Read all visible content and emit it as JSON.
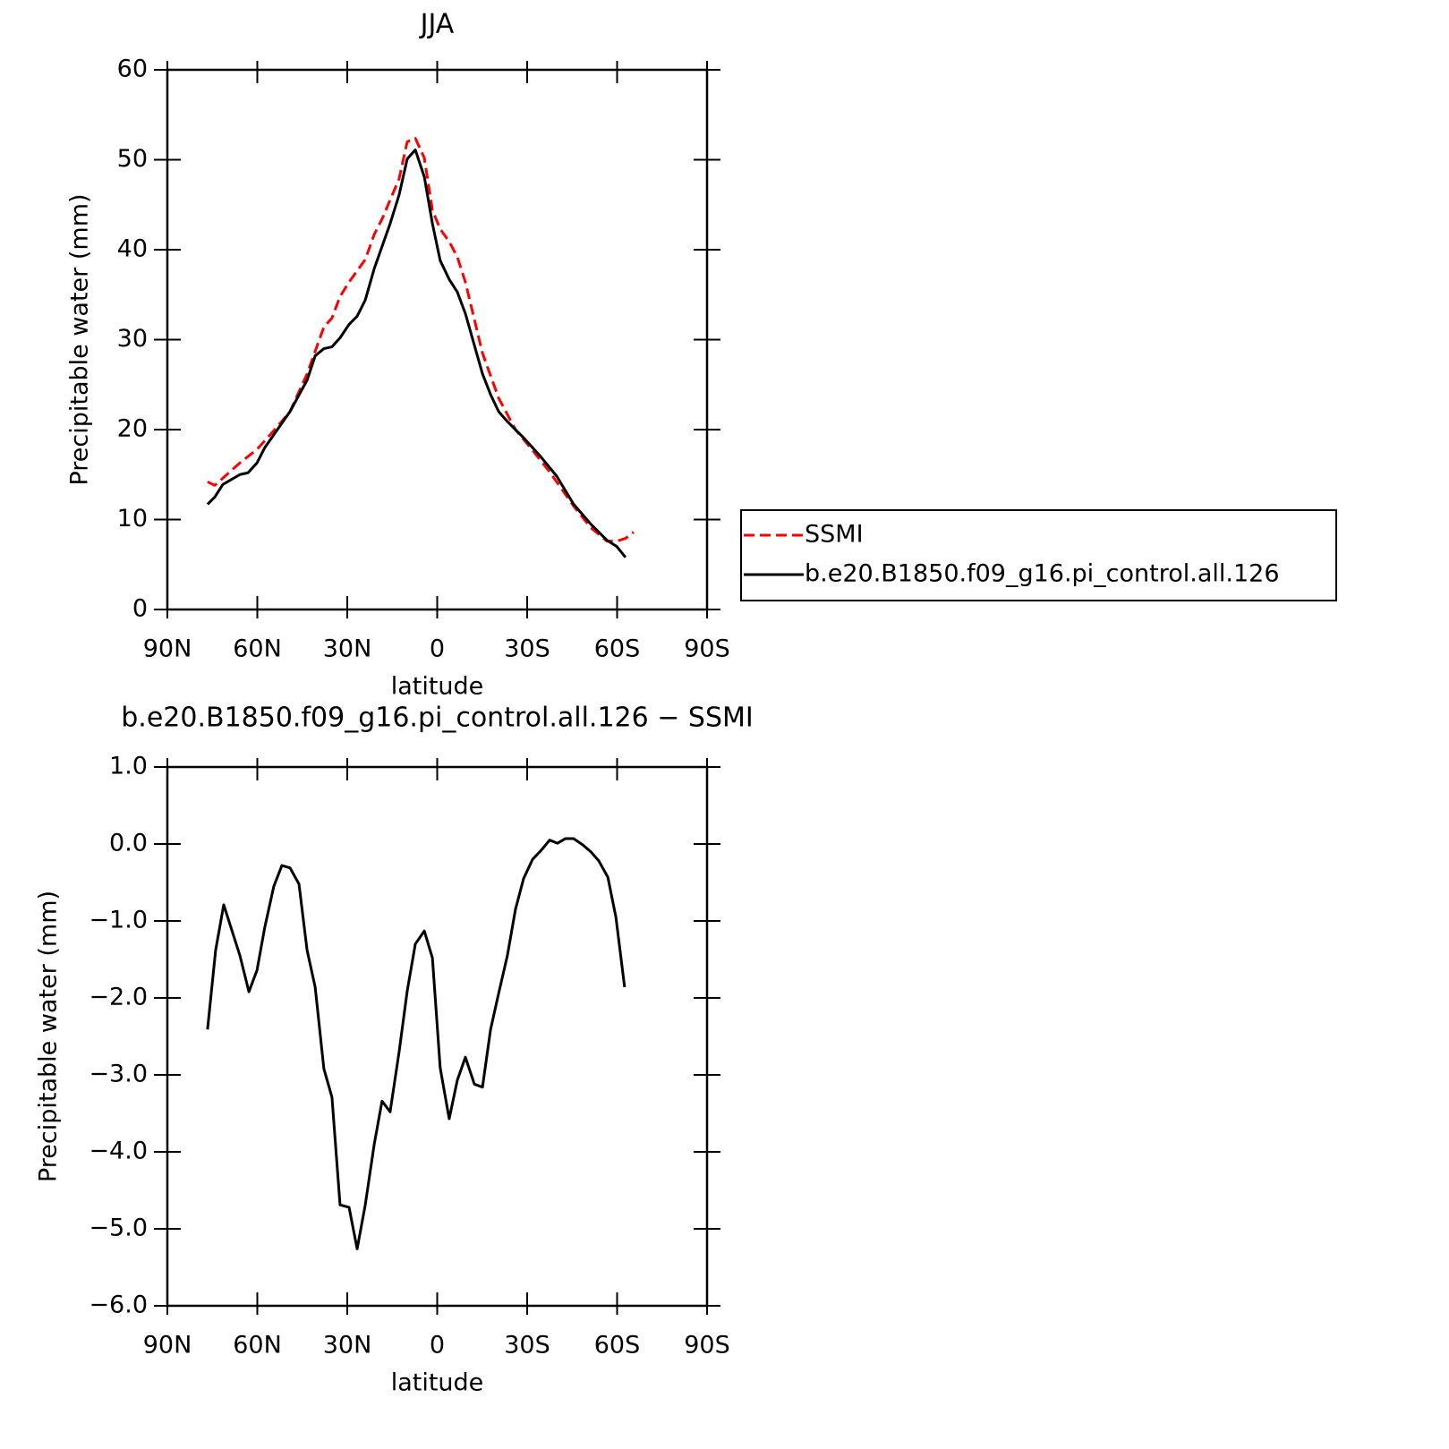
{
  "chart_data": [
    {
      "type": "line",
      "title": "JJA",
      "xlabel": "latitude",
      "ylabel": "Precipitable water (mm)",
      "xlim": [
        90,
        -90
      ],
      "xticks": [
        {
          "value": 90,
          "label": "90N"
        },
        {
          "value": 60,
          "label": "60N"
        },
        {
          "value": 30,
          "label": "30N"
        },
        0,
        {
          "value": -30,
          "label": "30S"
        },
        {
          "value": -60,
          "label": "60S"
        },
        {
          "value": -90,
          "label": "90S"
        }
      ],
      "ylim": [
        0,
        60
      ],
      "yticks": [
        0,
        10,
        20,
        30,
        40,
        50,
        60
      ],
      "legend": "right",
      "series": [
        {
          "name": "SSMI",
          "color": "#ff0000",
          "dash": "dashed",
          "x": [
            76.6,
            74.2,
            65.8,
            60.1,
            54.7,
            49.1,
            43.4,
            37.8,
            35.1,
            32.4,
            29.4,
            24.0,
            21.0,
            18.4,
            12.7,
            10.0,
            7.3,
            4.3,
            1.6,
            -1.0,
            -4.0,
            -6.7,
            -9.4,
            -15.1,
            -20.5,
            -26.1,
            -31.8,
            -37.5,
            -45.5,
            -51.2,
            -56.6,
            -59.9,
            -62.8,
            -65.5
          ],
          "values": [
            14.2,
            13.8,
            16.3,
            17.8,
            19.8,
            22.0,
            26.2,
            31.4,
            32.4,
            34.8,
            36.4,
            38.9,
            41.7,
            43.4,
            47.9,
            52.0,
            52.4,
            50.2,
            44.4,
            42.3,
            40.9,
            39.2,
            36.4,
            28.5,
            23.5,
            20.0,
            17.7,
            15.3,
            11.5,
            9.1,
            7.6,
            7.6,
            7.9,
            8.6
          ]
        },
        {
          "name": "b.e20.B1850.f09_g16.pi_control.all.126",
          "color": "#000000",
          "dash": "solid",
          "x": [
            76.6,
            74.2,
            71.5,
            65.8,
            63.1,
            60.1,
            57.5,
            49.1,
            43.4,
            40.7,
            37.8,
            35.1,
            32.4,
            29.4,
            26.7,
            24.0,
            21.0,
            15.7,
            12.7,
            10.0,
            7.3,
            4.3,
            1.6,
            -1.0,
            -4.0,
            -6.7,
            -9.4,
            -15.1,
            -17.8,
            -20.5,
            -23.4,
            -28.8,
            -34.5,
            -39.9,
            -45.5,
            -51.2,
            -56.6,
            -59.9,
            -62.8
          ],
          "values": [
            11.7,
            12.5,
            13.9,
            15.0,
            15.2,
            16.3,
            18.0,
            22.0,
            25.5,
            28.2,
            29.0,
            29.2,
            30.2,
            31.7,
            32.6,
            34.4,
            37.9,
            42.9,
            46.1,
            50.1,
            51.1,
            48.1,
            42.9,
            38.8,
            36.7,
            35.3,
            32.9,
            26.2,
            23.9,
            22.0,
            20.9,
            19.1,
            17.0,
            14.8,
            11.7,
            9.5,
            7.7,
            7.0,
            5.8
          ]
        }
      ]
    },
    {
      "type": "line",
      "title": "b.e20.B1850.f09_g16.pi_control.all.126 − SSMI",
      "xlabel": "latitude",
      "ylabel": "Precipitable water (mm)",
      "xlim": [
        90,
        -90
      ],
      "xticks": [
        {
          "value": 90,
          "label": "90N"
        },
        {
          "value": 60,
          "label": "60N"
        },
        {
          "value": 30,
          "label": "30N"
        },
        0,
        {
          "value": -30,
          "label": "30S"
        },
        {
          "value": -60,
          "label": "60S"
        },
        {
          "value": -90,
          "label": "90S"
        }
      ],
      "ylim": [
        -6,
        1
      ],
      "yticks": [
        {
          "value": -6,
          "label": "−6.0"
        },
        {
          "value": -5,
          "label": "−5.0"
        },
        {
          "value": -4,
          "label": "−4.0"
        },
        {
          "value": -3,
          "label": "−3.0"
        },
        {
          "value": -2,
          "label": "−2.0"
        },
        {
          "value": -1,
          "label": "−1.0"
        },
        {
          "value": 0,
          "label": "0.0"
        },
        {
          "value": 1,
          "label": "1.0"
        }
      ],
      "series": [
        {
          "color": "#000000",
          "dash": "solid",
          "x": [
            76.6,
            73.9,
            71.2,
            65.8,
            62.8,
            60.1,
            57.5,
            54.5,
            51.8,
            49.1,
            46.1,
            43.4,
            40.7,
            37.8,
            35.1,
            32.4,
            29.4,
            26.7,
            24.0,
            21.0,
            18.4,
            15.7,
            12.7,
            10.0,
            7.3,
            4.3,
            1.6,
            -1.0,
            -4.0,
            -6.7,
            -9.4,
            -12.4,
            -15.1,
            -17.8,
            -20.5,
            -23.4,
            -26.1,
            -28.8,
            -31.8,
            -34.5,
            -37.5,
            -40.1,
            -42.8,
            -45.5,
            -48.5,
            -51.2,
            -53.9,
            -56.9,
            -59.6,
            -62.5
          ],
          "values": [
            -2.41,
            -1.38,
            -0.79,
            -1.45,
            -1.92,
            -1.64,
            -1.08,
            -0.55,
            -0.28,
            -0.31,
            -0.52,
            -1.38,
            -1.86,
            -2.92,
            -3.29,
            -4.69,
            -4.72,
            -5.26,
            -4.69,
            -3.9,
            -3.34,
            -3.48,
            -2.7,
            -1.91,
            -1.3,
            -1.13,
            -1.48,
            -2.91,
            -3.57,
            -3.07,
            -2.77,
            -3.12,
            -3.16,
            -2.41,
            -1.94,
            -1.45,
            -0.85,
            -0.45,
            -0.2,
            -0.09,
            0.05,
            0.01,
            0.07,
            0.07,
            -0.01,
            -0.1,
            -0.22,
            -0.43,
            -0.95,
            -1.86
          ]
        }
      ]
    }
  ]
}
